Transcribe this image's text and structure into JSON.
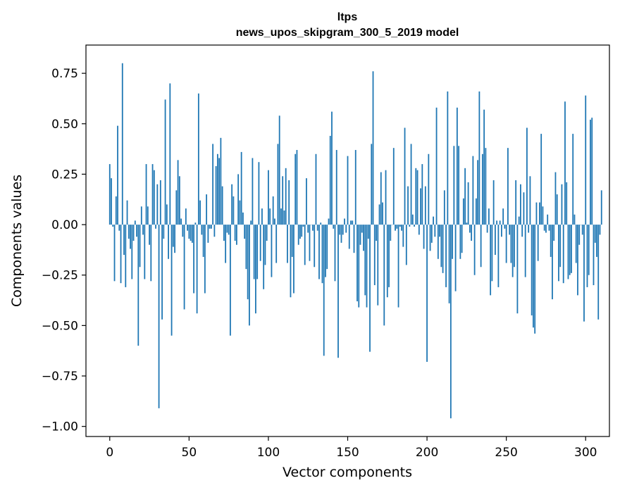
{
  "chart_data": {
    "type": "bar",
    "title": "ltps",
    "subtitle": "news_upos_skipgram_300_5_2019 model",
    "xlabel": "Vector components",
    "ylabel": "Components values",
    "xlim": [
      -15,
      315
    ],
    "ylim": [
      -1.05,
      0.89
    ],
    "xticks": [
      0,
      50,
      100,
      150,
      200,
      250,
      300
    ],
    "yticks": [
      -1.0,
      -0.75,
      -0.5,
      -0.25,
      0.0,
      0.25,
      0.5,
      0.75
    ],
    "ytick_labels": [
      "−1.00",
      "−0.75",
      "−0.50",
      "−0.25",
      "0.00",
      "0.25",
      "0.50",
      "0.75"
    ],
    "grid": false,
    "bar_color": "#1f77b4",
    "values": [
      0.3,
      0.23,
      -0.01,
      -0.28,
      0.14,
      0.49,
      -0.03,
      -0.29,
      0.8,
      -0.15,
      -0.31,
      0.12,
      -0.07,
      -0.12,
      -0.27,
      -0.08,
      0.02,
      -0.06,
      -0.6,
      -0.21,
      0.09,
      -0.05,
      -0.27,
      0.3,
      0.09,
      -0.1,
      -0.28,
      0.3,
      0.27,
      -0.02,
      0.2,
      -0.91,
      0.22,
      -0.47,
      -0.07,
      0.62,
      0.1,
      -0.17,
      0.7,
      -0.55,
      -0.11,
      -0.14,
      0.17,
      0.32,
      0.24,
      0.03,
      -0.06,
      -0.42,
      0.08,
      -0.03,
      -0.07,
      -0.08,
      -0.09,
      -0.34,
      0.01,
      -0.44,
      0.65,
      0.12,
      -0.05,
      -0.16,
      -0.34,
      0.15,
      -0.09,
      -0.02,
      -0.02,
      0.4,
      -0.06,
      0.29,
      0.35,
      0.33,
      0.43,
      0.19,
      -0.08,
      -0.19,
      -0.04,
      -0.05,
      -0.55,
      0.2,
      0.14,
      -0.08,
      -0.1,
      0.25,
      0.12,
      0.36,
      0.06,
      -0.07,
      -0.22,
      -0.37,
      -0.5,
      0.02,
      0.33,
      -0.27,
      -0.44,
      -0.27,
      0.31,
      -0.18,
      0.08,
      -0.32,
      -0.2,
      -0.08,
      0.27,
      0.08,
      -0.26,
      0.14,
      0.03,
      -0.19,
      0.4,
      0.54,
      0.08,
      0.24,
      0.07,
      0.28,
      -0.19,
      0.22,
      -0.36,
      -0.16,
      -0.34,
      0.35,
      0.37,
      -0.1,
      -0.07,
      -0.06,
      -0.01,
      -0.2,
      0.23,
      -0.04,
      -0.18,
      0.0,
      -0.03,
      -0.21,
      0.35,
      -0.03,
      -0.27,
      0.01,
      -0.29,
      -0.65,
      -0.26,
      -0.22,
      0.03,
      0.44,
      0.56,
      -0.02,
      -0.28,
      0.37,
      -0.66,
      -0.05,
      -0.09,
      -0.05,
      0.03,
      -0.04,
      0.34,
      -0.12,
      0.02,
      0.02,
      -0.14,
      0.37,
      -0.38,
      -0.41,
      -0.1,
      -0.04,
      -0.13,
      -0.35,
      -0.41,
      -0.07,
      -0.63,
      0.4,
      0.76,
      -0.3,
      -0.08,
      -0.4,
      0.1,
      0.26,
      0.11,
      -0.5,
      0.27,
      -0.36,
      -0.31,
      -0.08,
      0.0,
      0.38,
      -0.03,
      -0.02,
      -0.41,
      -0.01,
      -0.03,
      -0.11,
      0.48,
      -0.2,
      0.19,
      -0.01,
      0.4,
      0.05,
      -0.01,
      0.28,
      0.27,
      -0.05,
      0.18,
      0.3,
      -0.12,
      0.19,
      -0.68,
      0.35,
      -0.13,
      -0.09,
      0.04,
      -0.06,
      0.58,
      -0.17,
      -0.06,
      -0.21,
      -0.24,
      0.17,
      -0.31,
      0.66,
      -0.39,
      -0.96,
      -0.17,
      0.39,
      -0.33,
      0.58,
      0.39,
      -0.17,
      -0.14,
      0.13,
      0.28,
      0.01,
      0.21,
      -0.04,
      -0.08,
      0.34,
      -0.25,
      0.13,
      0.32,
      0.66,
      -0.21,
      0.35,
      0.57,
      0.38,
      -0.04,
      0.08,
      -0.35,
      -0.28,
      0.22,
      -0.15,
      0.02,
      -0.31,
      0.02,
      -0.06,
      0.08,
      -0.02,
      -0.19,
      0.38,
      -0.05,
      -0.19,
      -0.26,
      -0.21,
      0.22,
      -0.44,
      0.04,
      0.2,
      -0.06,
      0.16,
      -0.26,
      0.48,
      -0.04,
      0.24,
      -0.45,
      -0.51,
      -0.54,
      0.11,
      -0.18,
      0.11,
      0.45,
      0.09,
      -0.03,
      -0.04,
      0.05,
      -0.03,
      -0.16,
      -0.37,
      -0.08,
      0.26,
      0.15,
      -0.28,
      -0.21,
      0.2,
      -0.29,
      0.61,
      0.21,
      -0.27,
      -0.25,
      -0.24,
      0.45,
      0.05,
      -0.19,
      -0.35,
      -0.1,
      0.0,
      -0.05,
      -0.48,
      0.64,
      -0.31,
      -0.25,
      0.52,
      0.53,
      -0.3,
      -0.09,
      -0.16,
      -0.47,
      -0.05,
      0.17
    ]
  }
}
